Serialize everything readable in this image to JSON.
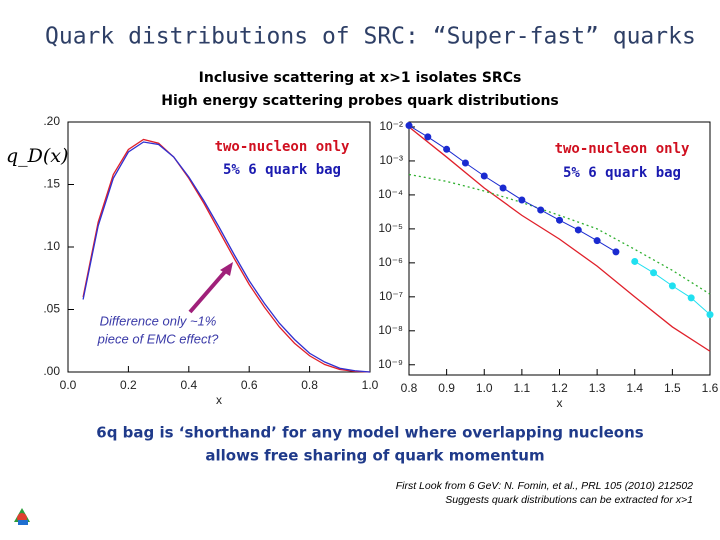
{
  "slide": {
    "title": "Quark distributions of SRC: “Super-fast” quarks",
    "subtitle": [
      "Inclusive scattering at x>1 isolates SRCs",
      "High energy scattering probes quark distributions"
    ],
    "conclusion": [
      "6q bag is ‘shorthand’ for any model where overlapping nucleons",
      "allows free sharing of quark momentum"
    ],
    "reference": [
      "First Look from 6 GeV: N. Fomin, et al., PRL 105 (2010) 212502",
      "Suggests quark distributions can be extracted for x>1"
    ]
  },
  "chart_data": [
    {
      "type": "line",
      "y_label": "q_D(x)",
      "x_label": "x",
      "x": [
        0.05,
        0.1,
        0.15,
        0.2,
        0.25,
        0.3,
        0.35,
        0.4,
        0.45,
        0.5,
        0.55,
        0.6,
        0.65,
        0.7,
        0.75,
        0.8,
        0.85,
        0.9,
        0.95,
        1.0
      ],
      "series": [
        {
          "color": "#e0202a",
          "values": [
            0.06,
            0.12,
            0.158,
            0.178,
            0.186,
            0.183,
            0.172,
            0.155,
            0.135,
            0.113,
            0.091,
            0.07,
            0.052,
            0.036,
            0.023,
            0.013,
            0.006,
            0.002,
            0.0005,
            0
          ]
        },
        {
          "color": "#3030d0",
          "values": [
            0.058,
            0.117,
            0.155,
            0.176,
            0.184,
            0.182,
            0.172,
            0.156,
            0.137,
            0.116,
            0.094,
            0.073,
            0.055,
            0.039,
            0.026,
            0.015,
            0.008,
            0.003,
            0.001,
            0
          ]
        }
      ],
      "xlim": [
        0,
        1
      ],
      "ylim": [
        0,
        0.2
      ],
      "xticks": [
        {
          "value": 0,
          "label": "0.0"
        },
        {
          "value": 0.2,
          "label": "0.2"
        },
        {
          "value": 0.4,
          "label": "0.4"
        },
        {
          "value": 0.6,
          "label": "0.6"
        },
        {
          "value": 0.8,
          "label": "0.8"
        },
        {
          "value": 1,
          "label": "1.0"
        }
      ],
      "yticks": [
        {
          "value": 0,
          "label": ".00"
        },
        {
          "value": 0.05,
          "label": ".05"
        },
        {
          "value": 0.1,
          "label": ".10"
        },
        {
          "value": 0.15,
          "label": ".15"
        },
        {
          "value": 0.2,
          "label": ".20"
        }
      ],
      "annotations": [
        {
          "text": "two-nucleon only",
          "color": "#d01020"
        },
        {
          "text": "5% 6 quark bag",
          "color": "#1a1ab0"
        },
        {
          "text": "Difference only ~1%",
          "color": "#3a3aa8"
        },
        {
          "text": "piece of EMC effect?",
          "color": "#3a3aa8"
        }
      ]
    },
    {
      "type": "line",
      "yscale": "log",
      "x_label": "x",
      "series": [
        {
          "color": "#e0202a",
          "x": [
            0.8,
            0.9,
            1.0,
            1.1,
            1.2,
            1.3,
            1.4,
            1.5,
            1.6
          ],
          "values": [
            0.01,
            0.0013,
            0.00016,
            2.5e-05,
            5e-06,
            8e-07,
            1e-07,
            1.3e-08,
            2.5e-09
          ]
        },
        {
          "color": "#30b030",
          "dash": true,
          "x": [
            0.8,
            0.9,
            1.0,
            1.1,
            1.2,
            1.3,
            1.4,
            1.5,
            1.6
          ],
          "values": [
            0.0004,
            0.00025,
            0.00013,
            6e-05,
            2.5e-05,
            1e-05,
            2.5e-06,
            6e-07,
            1.2e-07
          ]
        },
        {
          "color": "#1a2ad0",
          "marker": true,
          "x": [
            0.8,
            0.85,
            0.9,
            0.95,
            1.0,
            1.05,
            1.1,
            1.15,
            1.2,
            1.25,
            1.3,
            1.35
          ],
          "values": [
            0.011,
            0.0051,
            0.0022,
            0.00087,
            0.00036,
            0.00016,
            7.1e-05,
            3.6e-05,
            1.8e-05,
            9.3e-06,
            4.5e-06,
            2.1e-06
          ]
        },
        {
          "color": "#20e0f0",
          "marker": true,
          "x": [
            1.4,
            1.45,
            1.5,
            1.55,
            1.6
          ],
          "values": [
            1.1e-06,
            5.1e-07,
            2.1e-07,
            9.3e-08,
            3e-08
          ]
        }
      ],
      "xlim": [
        0.8,
        1.6
      ],
      "ylim": [
        5e-10,
        0.014
      ],
      "xticks": [
        0.8,
        0.9,
        {
          "value": 1,
          "label": "1.0"
        },
        1.1,
        1.2,
        1.3,
        1.4,
        1.5,
        1.6
      ],
      "yticks": [
        {
          "value": 0.01,
          "label": "10⁻²"
        },
        {
          "value": 0.001,
          "label": "10⁻³"
        },
        {
          "value": 0.0001,
          "label": "10⁻⁴"
        },
        {
          "value": 1e-05,
          "label": "10⁻⁵"
        },
        {
          "value": 1e-06,
          "label": "10⁻⁶"
        },
        {
          "value": 1e-07,
          "label": "10⁻⁷"
        },
        {
          "value": 1e-08,
          "label": "10⁻⁸"
        },
        {
          "value": 1e-09,
          "label": "10⁻⁹"
        }
      ],
      "annotations": [
        {
          "text": "two-nucleon only",
          "color": "#d01020"
        },
        {
          "text": "5% 6 quark bag",
          "color": "#1a1ab0"
        }
      ]
    }
  ]
}
